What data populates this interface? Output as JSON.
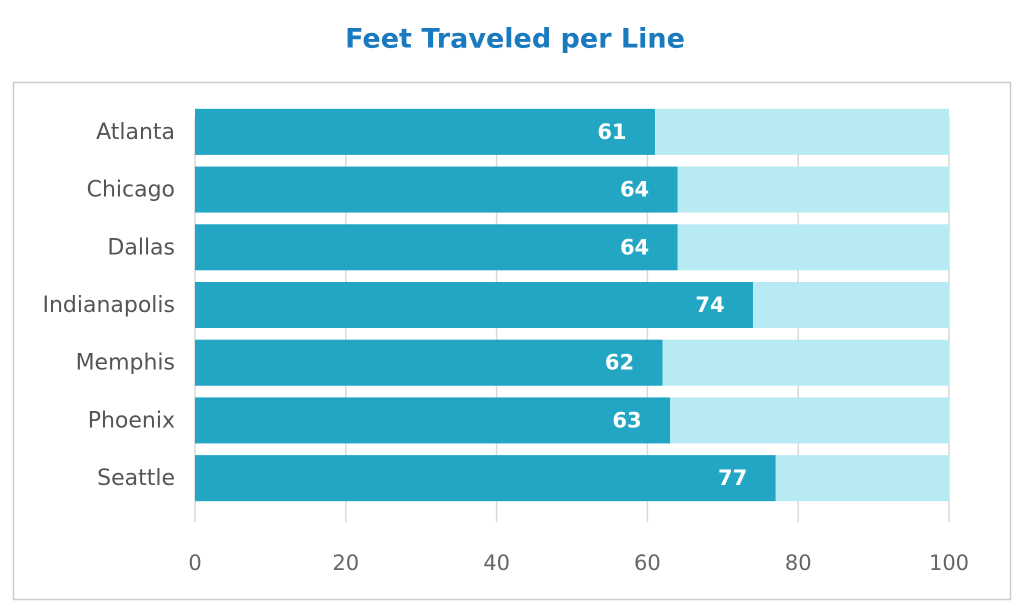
{
  "chart_data": {
    "type": "bar",
    "orientation": "horizontal",
    "title": "Feet Traveled per Line",
    "categories": [
      "Atlanta",
      "Chicago",
      "Dallas",
      "Indianapolis",
      "Memphis",
      "Phoenix",
      "Seattle"
    ],
    "values": [
      61,
      64,
      64,
      74,
      62,
      63,
      77
    ],
    "color": "#22a6c4",
    "track_color": "#b8eaf3",
    "xlim": [
      0,
      100
    ],
    "xticks": [
      0,
      20,
      40,
      60,
      80,
      100
    ],
    "grid": true
  }
}
